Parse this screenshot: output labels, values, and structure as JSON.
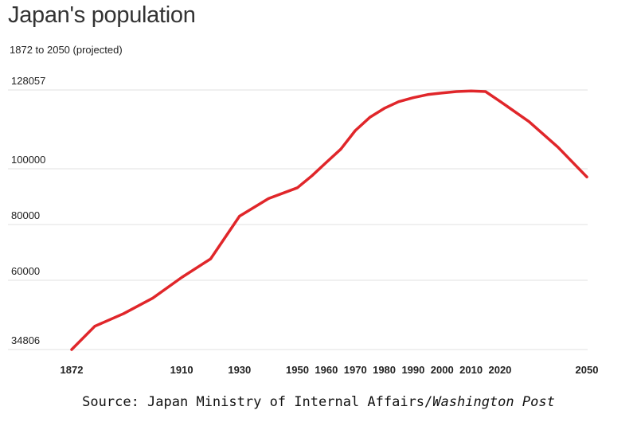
{
  "chart_data": {
    "type": "line",
    "title": "Japan's population",
    "subtitle": "1872 to 2050 (projected)",
    "xlabel": "",
    "ylabel": "",
    "x_ticks": [
      1872,
      1910,
      1930,
      1950,
      1960,
      1970,
      1980,
      1990,
      2000,
      2010,
      2020,
      2050
    ],
    "y_ticks": [
      34806,
      60000,
      80000,
      100000,
      128057
    ],
    "ylim": [
      34806,
      128057
    ],
    "xlim": [
      1872,
      2050
    ],
    "grid": "horizontal",
    "line_color": "#e0262a",
    "series": [
      {
        "x": [
          1872,
          1880,
          1890,
          1900,
          1910,
          1920,
          1930,
          1940,
          1950,
          1955,
          1960,
          1965,
          1970,
          1975,
          1980,
          1985,
          1990,
          1995,
          2000,
          2005,
          2010,
          2015,
          2020,
          2030,
          2040,
          2050
        ],
        "values": [
          34806,
          43300,
          47900,
          53500,
          61000,
          67700,
          83000,
          89300,
          93200,
          97500,
          102300,
          107000,
          113600,
          118300,
          121500,
          123900,
          125300,
          126400,
          127000,
          127500,
          127700,
          127500,
          124000,
          116800,
          107700,
          97100
        ]
      }
    ]
  },
  "footer": {
    "source_prefix": "Source: Japan Ministry of Internal Affairs/",
    "source_publication": "Washington Post"
  }
}
